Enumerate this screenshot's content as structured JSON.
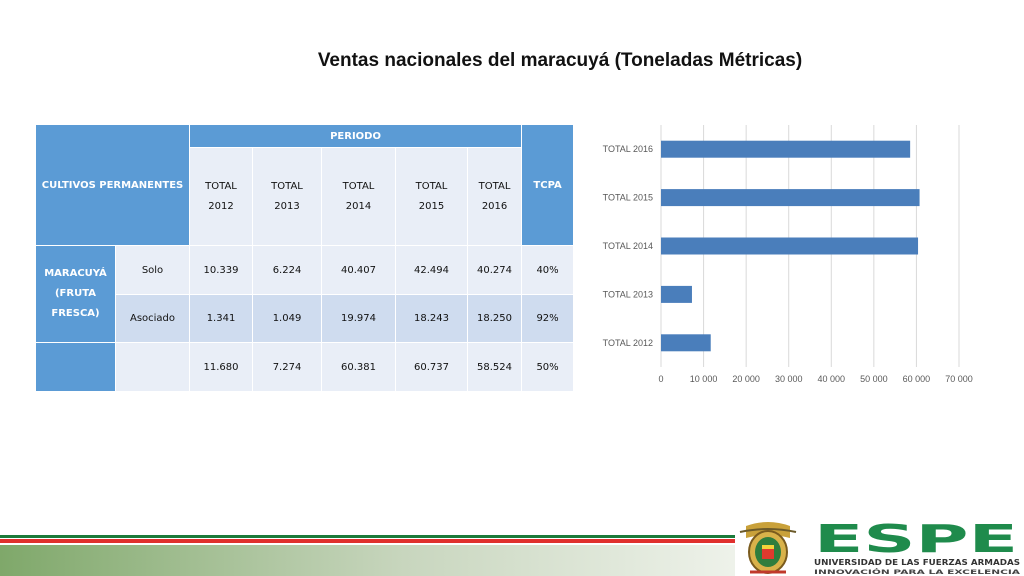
{
  "title": "Ventas nacionales del maracuyá (Toneladas Métricas)",
  "table": {
    "cultivos_label": "CULTIVOS PERMANENTES",
    "periodo_label": "PERIODO",
    "tcpa_label": "TCPA",
    "years": [
      {
        "line1": "TOTAL",
        "line2": "2012"
      },
      {
        "line1": "TOTAL",
        "line2": "2013"
      },
      {
        "line1": "TOTAL",
        "line2": "2014"
      },
      {
        "line1": "TOTAL",
        "line2": "2015"
      },
      {
        "line1": "TOTAL",
        "line2": "2016"
      }
    ],
    "product_lines": [
      "MARACUYÁ",
      "(FRUTA",
      "FRESCA)"
    ],
    "rows": [
      {
        "label": "Solo",
        "values": [
          "10.339",
          "6.224",
          "40.407",
          "42.494",
          "40.274"
        ],
        "tcpa": "40%"
      },
      {
        "label": "Asociado",
        "values": [
          "1.341",
          "1.049",
          "19.974",
          "18.243",
          "18.250"
        ],
        "tcpa": "92%"
      },
      {
        "label": "",
        "values": [
          "11.680",
          "7.274",
          "60.381",
          "60.737",
          "58.524"
        ],
        "tcpa": "50%"
      }
    ]
  },
  "chart_data": {
    "type": "bar",
    "orientation": "horizontal",
    "categories": [
      "TOTAL 2012",
      "TOTAL 2013",
      "TOTAL 2014",
      "TOTAL 2015",
      "TOTAL 2016"
    ],
    "values": [
      11680,
      7274,
      60381,
      60737,
      58524
    ],
    "xticks": [
      "0",
      "10 000",
      "20 000",
      "30 000",
      "40 000",
      "50 000",
      "60 000",
      "70 000"
    ],
    "xlim": [
      0,
      70000
    ],
    "grid": true,
    "bar_color": "#4a7ebb"
  },
  "footer": {
    "logo_name": "ESPE",
    "logo_subtitle": "UNIVERSIDAD DE LAS FUERZAS ARMADAS",
    "logo_tagline": "INNOVACIÓN PARA LA EXCELENCIA"
  },
  "colors": {
    "header_blue": "#5b9bd5",
    "logo_green": "#1f8b4c",
    "stripe_red": "#e0302d"
  }
}
